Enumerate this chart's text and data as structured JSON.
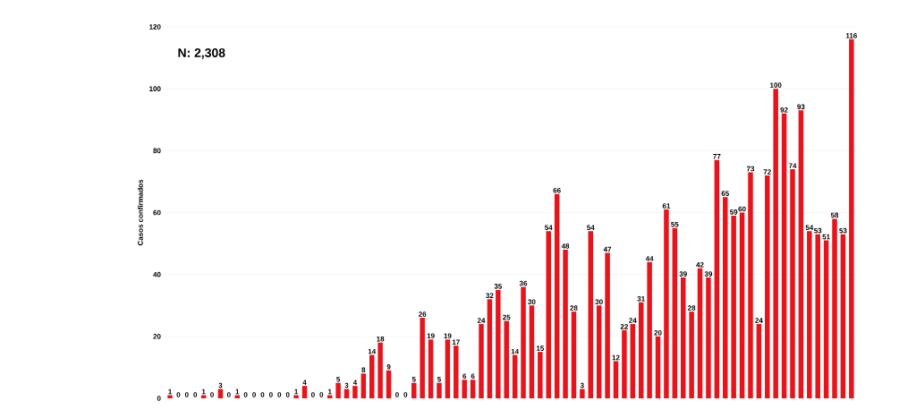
{
  "chart_data": {
    "type": "bar",
    "ylabel": "Casos confirmados",
    "annotations": [
      "N: 2,308"
    ],
    "categories": [
      null,
      null,
      null,
      null,
      null,
      null,
      null,
      null,
      null,
      null,
      null,
      null,
      null,
      null,
      null,
      null,
      null,
      null,
      null,
      null,
      null,
      null,
      null,
      null,
      null,
      null,
      null,
      null,
      null,
      null,
      null,
      null,
      null,
      null,
      null,
      null,
      null,
      null,
      null,
      null,
      null,
      null,
      null,
      null,
      null,
      null,
      null,
      null,
      null,
      null,
      null,
      null,
      null,
      null,
      null,
      null,
      null,
      null,
      null,
      null,
      null,
      null,
      null,
      null,
      null,
      null,
      null,
      null,
      null,
      null,
      null,
      null,
      null,
      null,
      null,
      null,
      null,
      null,
      null,
      null,
      null,
      null
    ],
    "values": [
      1,
      0,
      0,
      0,
      1,
      0,
      3,
      0,
      1,
      0,
      0,
      0,
      0,
      0,
      0,
      1,
      4,
      0,
      0,
      1,
      5,
      3,
      4,
      8,
      14,
      18,
      9,
      0,
      0,
      5,
      26,
      19,
      5,
      19,
      17,
      6,
      6,
      24,
      32,
      35,
      25,
      14,
      36,
      30,
      15,
      54,
      66,
      48,
      28,
      3,
      54,
      30,
      47,
      12,
      22,
      24,
      31,
      44,
      20,
      61,
      55,
      39,
      28,
      42,
      39,
      77,
      65,
      59,
      60,
      73,
      24,
      72,
      100,
      92,
      74,
      93,
      54,
      53,
      51,
      58,
      53,
      116
    ],
    "color": "#e8141b",
    "ylim": [
      0,
      120
    ],
    "yticks": [
      0,
      20,
      40,
      60,
      80,
      100,
      120
    ],
    "grid": "y",
    "data_labels": true
  }
}
